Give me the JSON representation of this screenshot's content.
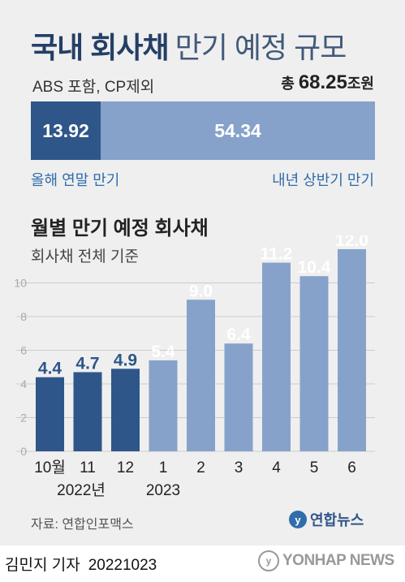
{
  "header": {
    "title_bold": "국내 회사채",
    "title_light": "만기 예정 규모",
    "subtitle": "ABS 포함, CP제외",
    "total_prefix": "총",
    "total_value": "68.25",
    "total_unit": "조원"
  },
  "stacked_bar": {
    "segments": [
      {
        "label": "올해 연말 만기",
        "value": 13.92,
        "value_text": "13.92",
        "color": "#2f5689"
      },
      {
        "label": "내년 상반기 만기",
        "value": 54.34,
        "value_text": "54.34",
        "color": "#86a2ca"
      }
    ]
  },
  "chart_title": "월별 만기 예정 회사채",
  "chart_subtitle": "회사채 전체 기준",
  "chart_data": {
    "type": "bar",
    "categories": [
      "10월",
      "11",
      "12",
      "1",
      "2",
      "3",
      "4",
      "5",
      "6"
    ],
    "year_labels": [
      {
        "text": "2022년",
        "category_index": 1
      },
      {
        "text": "2023",
        "category_index": 3
      }
    ],
    "values": [
      4.4,
      4.7,
      4.9,
      5.4,
      9.0,
      6.4,
      11.2,
      10.4,
      12.0
    ],
    "value_labels": [
      "4.4",
      "4.7",
      "4.9",
      "5.4",
      "9.0",
      "6.4",
      "11.2",
      "10.4",
      "12.0"
    ],
    "colors": [
      "#2f5689",
      "#2f5689",
      "#2f5689",
      "#86a2ca",
      "#86a2ca",
      "#86a2ca",
      "#86a2ca",
      "#86a2ca",
      "#86a2ca"
    ],
    "label_colors": [
      "#2f5689",
      "#2f5689",
      "#2f5689",
      "#ffffff",
      "#ffffff",
      "#ffffff",
      "#ffffff",
      "#ffffff",
      "#ffffff"
    ],
    "yticks": [
      0,
      2,
      4,
      6,
      8,
      10
    ],
    "ylim": [
      0,
      12
    ],
    "grid": true
  },
  "source": "자료: 연합인포맥스",
  "logo_text": "연합뉴스",
  "byline": {
    "author": "김민지 기자",
    "date": "20221023"
  },
  "watermark": "YONHAP NEWS"
}
